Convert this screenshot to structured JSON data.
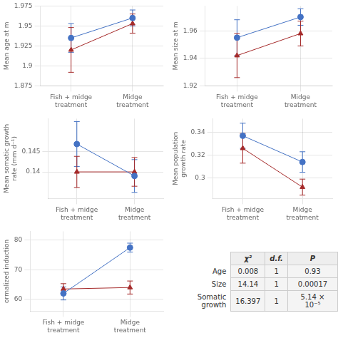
{
  "chart_data": [
    {
      "type": "line",
      "y_label": "Mean age at m",
      "categories": [
        "Fish + midge treatment",
        "Midge treatment"
      ],
      "series": [
        {
          "color": "#4472C4",
          "marker": "circle",
          "line_style": "solid",
          "values": [
            1.935,
            1.96
          ],
          "errors": [
            0.018,
            0.01
          ]
        },
        {
          "color": "#A52A2A",
          "marker": "triangle",
          "line_style": "solid",
          "values": [
            1.92,
            1.953
          ],
          "errors": [
            0.028,
            0.012
          ]
        }
      ],
      "ylim": [
        1.875,
        1.975
      ],
      "yticks": [
        1.875,
        1.9,
        1.925,
        1.95,
        1.975
      ],
      "grid": true
    },
    {
      "type": "line",
      "y_label": "Mean size at m",
      "categories": [
        "Fish + midge treatment",
        "Midge treatment"
      ],
      "series": [
        {
          "color": "#4472C4",
          "marker": "circle",
          "line_style": "solid",
          "values": [
            1.955,
            1.97
          ],
          "errors": [
            0.013,
            0.006
          ]
        },
        {
          "color": "#A52A2A",
          "marker": "triangle",
          "line_style": "solid",
          "values": [
            1.942,
            1.958
          ],
          "errors": [
            0.016,
            0.009
          ]
        }
      ],
      "ylim": [
        1.92,
        1.978
      ],
      "yticks": [
        1.92,
        1.94,
        1.96
      ],
      "grid": true
    },
    {
      "type": "line",
      "y_label": "Mean somatic growth rate (mm d⁻¹)",
      "categories": [
        "Fish + midge treatment",
        "Midge treatment"
      ],
      "series": [
        {
          "color": "#4472C4",
          "marker": "circle",
          "line_style": "solid",
          "values": [
            0.1468,
            0.139
          ],
          "errors": [
            0.0055,
            0.004
          ]
        },
        {
          "color": "#A52A2A",
          "marker": "triangle",
          "line_style": "solid",
          "values": [
            0.14,
            0.14
          ],
          "errors": [
            0.0038,
            0.0035
          ]
        }
      ],
      "ylim": [
        0.1335,
        0.153
      ],
      "yticks": [
        0.14,
        0.145
      ],
      "grid": true
    },
    {
      "type": "line",
      "y_label": "Mean population growth rate",
      "categories": [
        "Fish + midge treatment",
        "Midge treatment"
      ],
      "series": [
        {
          "color": "#4472C4",
          "marker": "circle",
          "line_style": "solid",
          "values": [
            0.337,
            0.314
          ],
          "errors": [
            0.011,
            0.009
          ]
        },
        {
          "color": "#A52A2A",
          "marker": "triangle",
          "line_style": "solid",
          "values": [
            0.326,
            0.292
          ],
          "errors": [
            0.013,
            0.007
          ]
        }
      ],
      "ylim": [
        0.282,
        0.352
      ],
      "yticks": [
        0.3,
        0.32,
        0.34
      ],
      "grid": true
    },
    {
      "type": "line",
      "y_label": "ormalized induction",
      "categories": [
        "Fish + midge treatment",
        "Midge treatment"
      ],
      "series": [
        {
          "color": "#4472C4",
          "marker": "circle",
          "line_style": "solid",
          "values": [
            62.0,
            77.5
          ],
          "errors": [
            2.2,
            1.5
          ]
        },
        {
          "color": "#A52A2A",
          "marker": "triangle",
          "line_style": "solid",
          "values": [
            63.5,
            64.0
          ],
          "errors": [
            1.8,
            2.2
          ]
        }
      ],
      "ylim": [
        56,
        83
      ],
      "yticks": [
        60,
        70,
        80
      ],
      "grid": true
    },
    {
      "type": "table",
      "columns": [
        "χ²",
        "d.f.",
        "P"
      ],
      "rows": [
        "Age",
        "Size",
        "Somatic growth"
      ],
      "cells": [
        [
          "0.008",
          "1",
          "0.93"
        ],
        [
          "14.14",
          "1",
          "0.00017"
        ],
        [
          "16.397",
          "1",
          "5.14 × 10⁻⁵"
        ]
      ]
    }
  ]
}
